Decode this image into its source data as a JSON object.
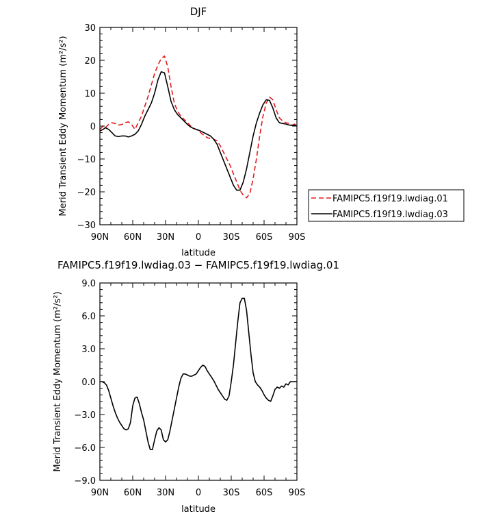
{
  "chart_data": [
    {
      "type": "line",
      "title": "DJF",
      "xlabel": "latitude",
      "ylabel": "Merid Transient Eddy Momentum (m²/s²)",
      "xlim": [
        90,
        -90
      ],
      "ylim": [
        -30,
        30
      ],
      "x_tick_values": [
        90,
        60,
        30,
        0,
        -30,
        -60,
        -90
      ],
      "x_tick_labels": [
        "90N",
        "60N",
        "30N",
        "0",
        "30S",
        "60S",
        "90S"
      ],
      "y_ticks": [
        -30,
        -20,
        -10,
        0,
        10,
        20,
        30
      ],
      "y_tick_labels": [
        "−30",
        "−20",
        "−10",
        "0",
        "10",
        "20",
        "30"
      ],
      "legend_position": "right",
      "series": [
        {
          "name": "FAMIPC5.f19f19.lwdiag.01",
          "color": "#e31a1c",
          "dash": "dashed",
          "x": [
            90,
            87,
            85,
            82,
            79,
            76,
            73,
            70,
            67,
            64,
            61,
            58,
            55,
            52,
            49,
            46,
            43,
            40,
            37,
            34,
            31,
            28,
            25,
            22,
            19,
            16,
            13,
            10,
            7,
            4,
            1,
            -2,
            -5,
            -8,
            -11,
            -14,
            -17,
            -20,
            -23,
            -26,
            -29,
            -32,
            -35,
            -38,
            -41,
            -44,
            -47,
            -50,
            -53,
            -56,
            -59,
            -62,
            -65,
            -68,
            -71,
            -74,
            -77,
            -80,
            -83,
            -86,
            -88,
            -90
          ],
          "y": [
            -1,
            0,
            -0.5,
            0.5,
            1,
            0.8,
            0.3,
            0.5,
            1,
            1.3,
            0.5,
            -1,
            1,
            3,
            6,
            9,
            12.5,
            16,
            18.5,
            20.5,
            21.3,
            18,
            12,
            7,
            4.5,
            3,
            2,
            1,
            0,
            -0.7,
            -1.2,
            -2,
            -2.8,
            -3.5,
            -3.8,
            -4,
            -4.5,
            -6,
            -8,
            -10,
            -12,
            -14.5,
            -17,
            -19.5,
            -21,
            -21.8,
            -20.5,
            -16,
            -10,
            -3,
            3,
            7,
            8.8,
            8,
            5,
            2.5,
            1.5,
            1,
            0.8,
            0.3,
            0.6,
            0
          ]
        },
        {
          "name": "FAMIPC5.f19f19.lwdiag.03",
          "color": "#000000",
          "dash": "solid",
          "x": [
            90,
            87,
            85,
            82,
            79,
            76,
            73,
            70,
            67,
            64,
            61,
            58,
            55,
            52,
            49,
            46,
            43,
            40,
            37,
            34,
            31,
            28,
            25,
            22,
            19,
            16,
            13,
            10,
            7,
            4,
            1,
            -2,
            -5,
            -8,
            -11,
            -14,
            -17,
            -20,
            -23,
            -26,
            -29,
            -32,
            -35,
            -38,
            -41,
            -44,
            -47,
            -50,
            -53,
            -56,
            -59,
            -62,
            -65,
            -68,
            -71,
            -74,
            -77,
            -80,
            -83,
            -86,
            -88,
            -90
          ],
          "y": [
            -1.5,
            -1,
            -0.5,
            -1,
            -2,
            -3,
            -3.2,
            -3,
            -3,
            -3.3,
            -3,
            -2.5,
            -1.5,
            0.5,
            3,
            5,
            7,
            10,
            14,
            16.5,
            16.2,
            12,
            7.5,
            5,
            3.5,
            2.5,
            1.5,
            0.5,
            -0.3,
            -0.8,
            -1.1,
            -1.5,
            -2,
            -2.5,
            -3,
            -4,
            -5.5,
            -8,
            -10.5,
            -13,
            -15.5,
            -18,
            -19.5,
            -19.5,
            -17,
            -13,
            -8,
            -3,
            1,
            4,
            6.5,
            8,
            7.8,
            5.5,
            2.5,
            1,
            0.8,
            0.6,
            0.3,
            0.2,
            0.3,
            0
          ]
        }
      ]
    },
    {
      "type": "line",
      "title": "FAMIPC5.f19f19.lwdiag.03 − FAMIPC5.f19f19.lwdiag.01",
      "xlabel": "latitude",
      "ylabel": "Merid Transient Eddy Momentum (m²/s²)",
      "xlim": [
        90,
        -90
      ],
      "ylim": [
        -9,
        9
      ],
      "x_tick_values": [
        90,
        60,
        30,
        0,
        -30,
        -60,
        -90
      ],
      "x_tick_labels": [
        "90N",
        "60N",
        "30N",
        "0",
        "30S",
        "60S",
        "90S"
      ],
      "y_ticks": [
        -9,
        -6,
        -3,
        0,
        3,
        6,
        9
      ],
      "y_tick_labels": [
        "−9.0",
        "−6.0",
        "−3.0",
        "0.0",
        "3.0",
        "6.0",
        "9.0"
      ],
      "series": [
        {
          "color": "#000000",
          "dash": "solid",
          "x": [
            90,
            88,
            86,
            84,
            82,
            80,
            78,
            76,
            74,
            72,
            70,
            68,
            66,
            64,
            62,
            60,
            58,
            56,
            54,
            52,
            50,
            48,
            46,
            44,
            42,
            40,
            38,
            36,
            34,
            32,
            30,
            28,
            26,
            24,
            22,
            20,
            18,
            16,
            14,
            12,
            10,
            8,
            6,
            4,
            2,
            0,
            -2,
            -4,
            -6,
            -8,
            -10,
            -12,
            -14,
            -16,
            -18,
            -20,
            -22,
            -24,
            -26,
            -28,
            -30,
            -32,
            -34,
            -36,
            -38,
            -40,
            -42,
            -44,
            -46,
            -48,
            -50,
            -52,
            -54,
            -56,
            -58,
            -60,
            -62,
            -64,
            -66,
            -68,
            -70,
            -72,
            -74,
            -76,
            -78,
            -80,
            -82,
            -84,
            -86,
            -88,
            -90
          ],
          "y": [
            0,
            0,
            -0.1,
            -0.3,
            -0.8,
            -1.5,
            -2.2,
            -2.8,
            -3.3,
            -3.7,
            -4,
            -4.3,
            -4.4,
            -4.3,
            -3.7,
            -2.2,
            -1.5,
            -1.4,
            -2,
            -2.8,
            -3.5,
            -4.5,
            -5.5,
            -6.2,
            -6.2,
            -5.3,
            -4.5,
            -4.2,
            -4.4,
            -5.3,
            -5.5,
            -5.3,
            -4.5,
            -3.5,
            -2.5,
            -1.5,
            -0.5,
            0.3,
            0.7,
            0.7,
            0.6,
            0.5,
            0.5,
            0.6,
            0.7,
            1,
            1.3,
            1.5,
            1.4,
            1,
            0.7,
            0.4,
            0.1,
            -0.3,
            -0.7,
            -1,
            -1.3,
            -1.6,
            -1.7,
            -1.3,
            0,
            1.5,
            3.5,
            5.5,
            7.2,
            7.6,
            7.6,
            6.5,
            4.5,
            2.5,
            0.8,
            0,
            -0.3,
            -0.5,
            -0.8,
            -1.2,
            -1.5,
            -1.7,
            -1.8,
            -1.3,
            -0.7,
            -0.5,
            -0.6,
            -0.4,
            -0.5,
            -0.2,
            -0.3,
            0,
            0,
            0,
            0
          ]
        }
      ]
    }
  ]
}
